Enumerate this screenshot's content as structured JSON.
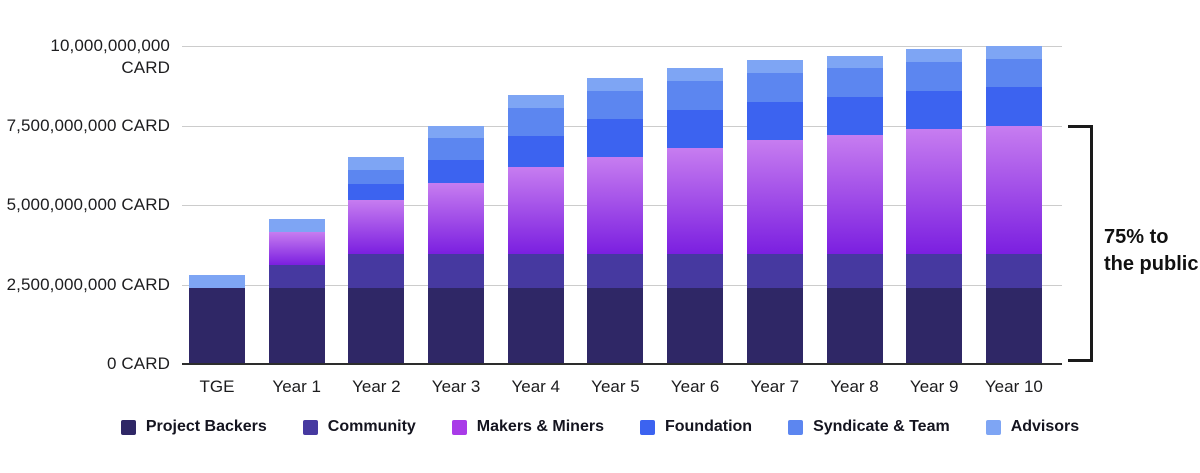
{
  "annotation": {
    "line1": "75% to",
    "line2": "the public"
  },
  "chart_data": {
    "type": "bar",
    "stacked": true,
    "unit": "CARD",
    "values_in": "billions of CARD tokens",
    "categories": [
      "TGE",
      "Year 1",
      "Year 2",
      "Year 3",
      "Year 4",
      "Year 5",
      "Year 6",
      "Year 7",
      "Year 8",
      "Year 9",
      "Year 10"
    ],
    "series": [
      {
        "name": "Project Backers",
        "color": "#2F2766",
        "values": [
          2.4,
          2.4,
          2.4,
          2.4,
          2.4,
          2.4,
          2.4,
          2.4,
          2.4,
          2.4,
          2.4
        ]
      },
      {
        "name": "Community",
        "color": "#4639A0",
        "values": [
          0,
          0.7,
          1.05,
          1.05,
          1.05,
          1.05,
          1.05,
          1.05,
          1.05,
          1.05,
          1.05
        ]
      },
      {
        "name": "Makers & Miners",
        "color": "#A93BE8",
        "gradient_bottom": "#7B1FE0",
        "gradient_top": "#C77DF0",
        "values": [
          0,
          1.05,
          1.7,
          2.25,
          2.75,
          3.05,
          3.35,
          3.6,
          3.75,
          3.95,
          4.05
        ]
      },
      {
        "name": "Foundation",
        "color": "#3C63F0",
        "values": [
          0,
          0,
          0.5,
          0.72,
          0.96,
          1.2,
          1.2,
          1.2,
          1.2,
          1.2,
          1.2
        ]
      },
      {
        "name": "Syndicate & Team",
        "color": "#5C86F0",
        "values": [
          0,
          0,
          0.45,
          0.68,
          0.9,
          0.9,
          0.9,
          0.9,
          0.9,
          0.9,
          0.9
        ]
      },
      {
        "name": "Advisors",
        "color": "#7EA5F4",
        "values": [
          0.4,
          0.4,
          0.4,
          0.4,
          0.4,
          0.4,
          0.4,
          0.4,
          0.4,
          0.4,
          0.4
        ]
      }
    ],
    "totals": [
      2.8,
      4.55,
      6.5,
      7.5,
      8.46,
      9.0,
      9.3,
      9.55,
      9.7,
      9.9,
      10.0
    ],
    "y_ticks": [
      "0 CARD",
      "2,500,000,000 CARD",
      "5,000,000,000 CARD",
      "7,500,000,000 CARD",
      "10,000,000,000 CARD"
    ],
    "ylim_billions": [
      0,
      10
    ],
    "grid": true,
    "legend_position": "bottom",
    "annotation_right": "75% to the public (bracket spans 0 to 7,500,000,000 CARD)"
  }
}
